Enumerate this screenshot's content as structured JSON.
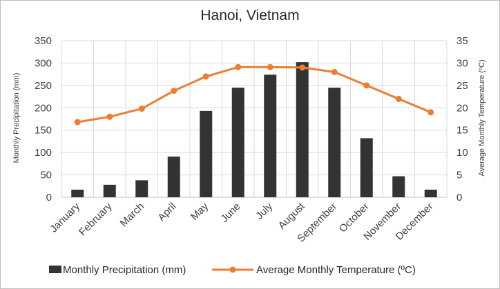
{
  "chart_data": {
    "type": "bar",
    "title": "Hanoi, Vietnam",
    "categories": [
      "January",
      "February",
      "March",
      "April",
      "May",
      "June",
      "July",
      "August",
      "September",
      "October",
      "November",
      "December"
    ],
    "series": [
      {
        "name": "Monthly Precipitation  (mm)",
        "type": "bar",
        "axis": "left",
        "color": "#333333",
        "values": [
          17,
          28,
          38,
          91,
          193,
          245,
          274,
          302,
          245,
          132,
          47,
          17
        ]
      },
      {
        "name": "Average Monthly  Temperature (ºC)",
        "type": "line",
        "axis": "right",
        "color": "#ED7D31",
        "values": [
          16.8,
          18,
          19.8,
          23.8,
          27,
          29.1,
          29.1,
          29,
          28,
          25,
          22,
          19
        ]
      }
    ],
    "ylabel": "Monthly Precipitation  (mm)",
    "ylim": [
      0,
      350
    ],
    "yticks": [
      0,
      50,
      100,
      150,
      200,
      250,
      300,
      350
    ],
    "y2label": "Average Monthly  Temperature (ºC)",
    "y2lim": [
      0,
      35
    ],
    "y2ticks": [
      0,
      5,
      10,
      15,
      20,
      25,
      30,
      35
    ],
    "grid": true,
    "legend": "bottom"
  }
}
